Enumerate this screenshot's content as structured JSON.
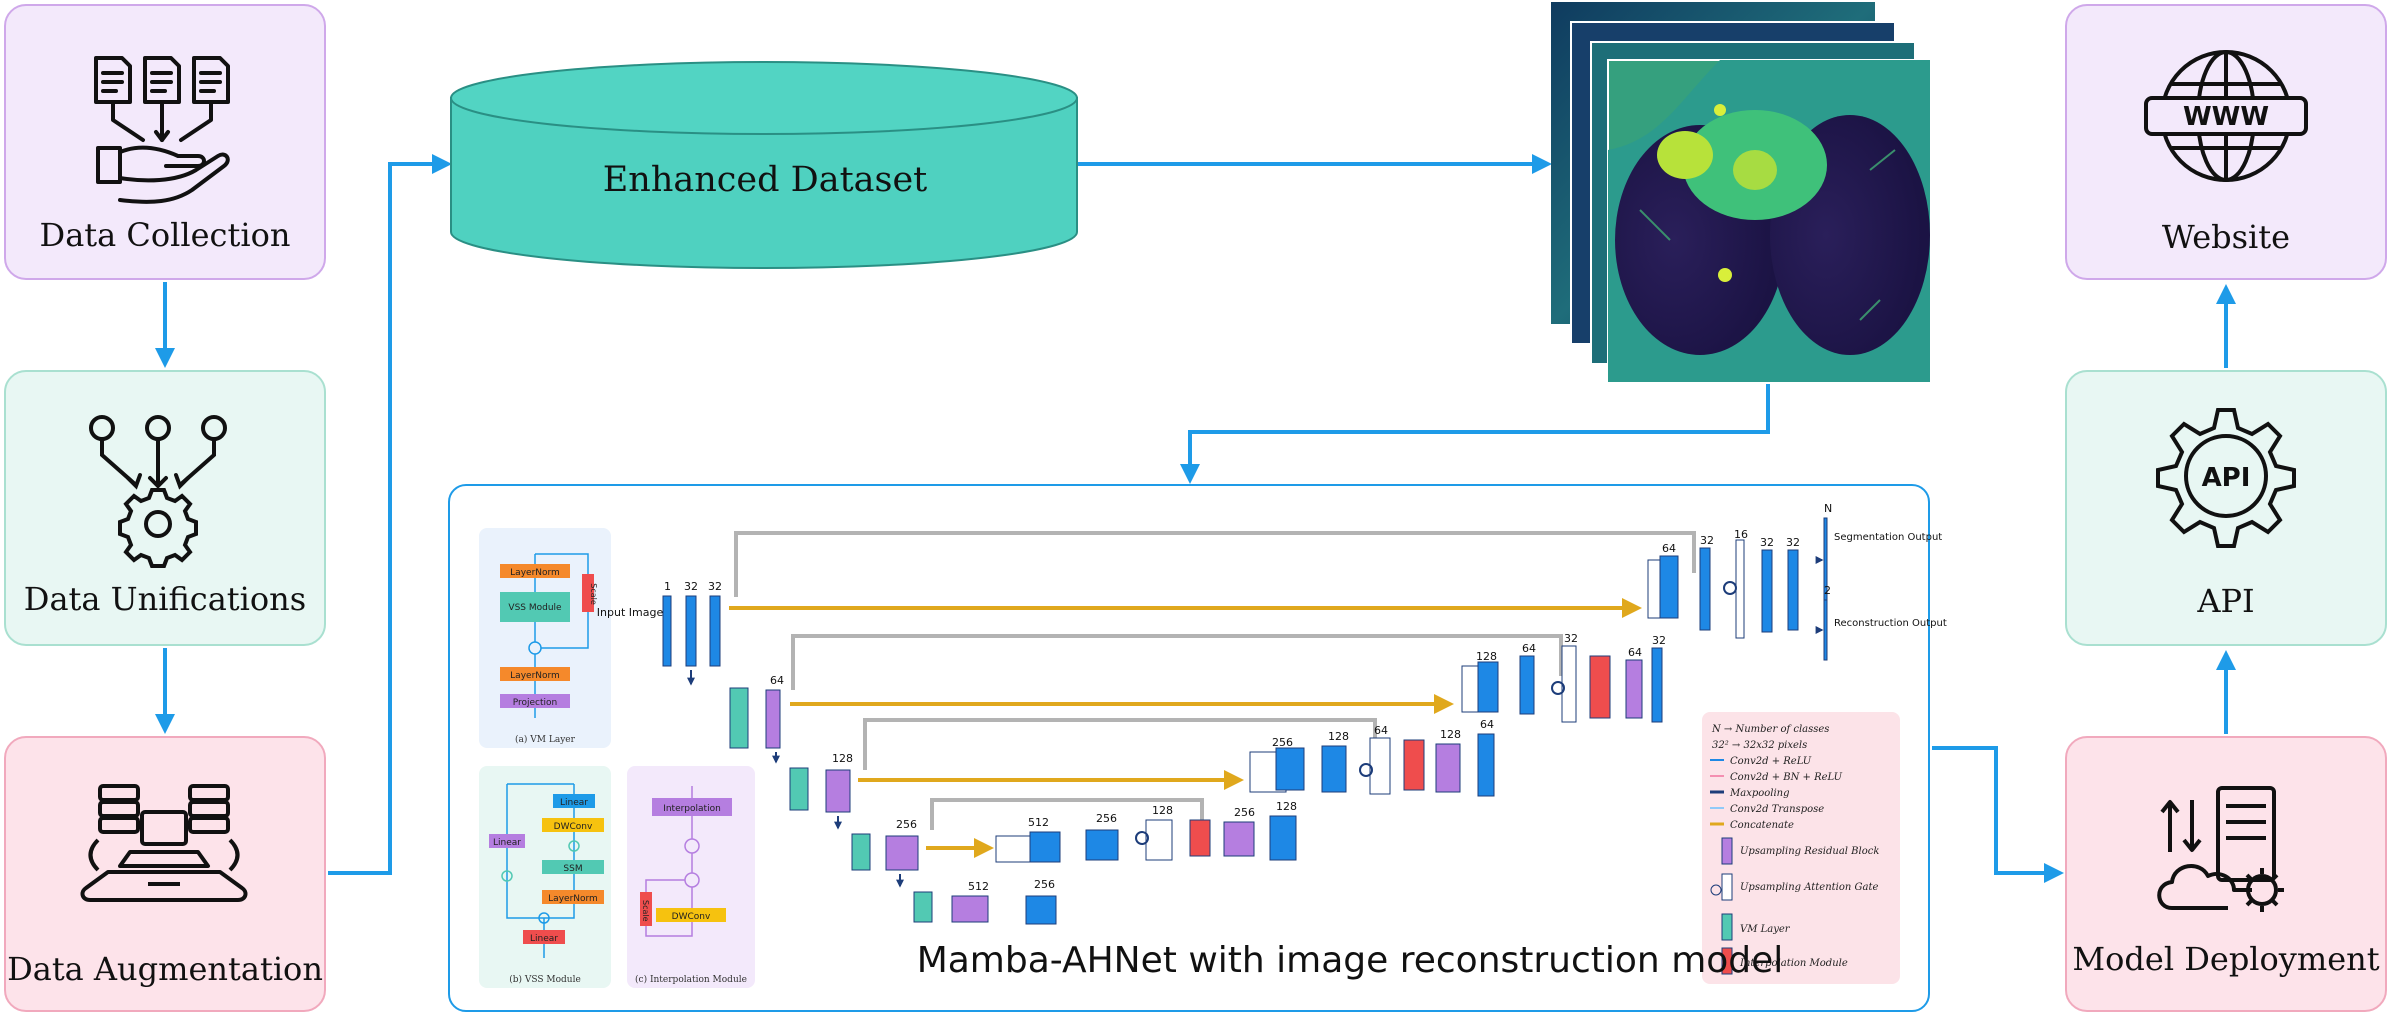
{
  "nodes": {
    "data_collection": "Data Collection",
    "data_unifications": "Data Unifications",
    "data_augmentation": "Data Augmentation",
    "enhanced_dataset": "Enhanced Dataset",
    "website": "Website",
    "api": "API",
    "model_deployment": "Model Deployment",
    "model_title": "Mamba-AHNet with image reconstruction model"
  },
  "icons": {
    "api_badge": "API",
    "www_badge": "WWW"
  },
  "inset": {
    "vm_layer": {
      "layernorm1": "LayerNorm",
      "vss": "VSS Module",
      "layernorm2": "LayerNorm",
      "projection": "Projection",
      "scale": "Scale",
      "caption": "(a) VM Layer"
    },
    "vss_module": {
      "linear1": "Linear",
      "dwconv": "DWConv",
      "linear_left": "Linear",
      "ssm": "SSM",
      "layernorm": "LayerNorm",
      "linear2": "Linear",
      "caption": "(b) VSS Module"
    },
    "interp_module": {
      "interpolation": "Interpolation",
      "dwconv": "DWConv",
      "scale": "Scale",
      "caption": "(c) Interpolation Module"
    }
  },
  "network": {
    "input_label": "Input Image",
    "ch": {
      "c1": "1",
      "c32a": "32",
      "c32b": "32",
      "c64": "64",
      "c128": "128",
      "c256": "256",
      "c512a": "512",
      "c512b": "512",
      "c256b": "256",
      "c128b": "128",
      "c256c": "256",
      "c256d": "256",
      "c128c": "128",
      "c64b": "64",
      "c128d": "128",
      "c128e": "128",
      "c64c": "64",
      "c32c": "32",
      "c64d": "64",
      "c32d": "32",
      "c64e": "64",
      "c32e": "32",
      "c16": "16",
      "c32f": "32",
      "c32g": "32",
      "cN": "N",
      "c2": "2",
      "c128f": "128"
    },
    "seg_out": "Segmentation Output",
    "rec_out": "Reconstruction Output"
  },
  "legend": {
    "l1": "N → Number of classes",
    "l2": "32² → 32x32 pixels",
    "l3": "Conv2d + ReLU",
    "l4": "Conv2d + BN + ReLU",
    "l5": "Maxpooling",
    "l6": "Conv2d Transpose",
    "l7": "Concatenate",
    "l8": "Upsampling Residual Block",
    "l9": "Upsampling Attention Gate",
    "l10": "VM Layer",
    "l11": "Interpolation Module"
  },
  "colors": {
    "arrow": "#1e9be8",
    "purple_box": "#f3e9fb",
    "green_box": "#e8f7f3",
    "red_box": "#fde3ea",
    "cylinder": "#4fd1c0",
    "skip_gold": "#e0a81d"
  }
}
